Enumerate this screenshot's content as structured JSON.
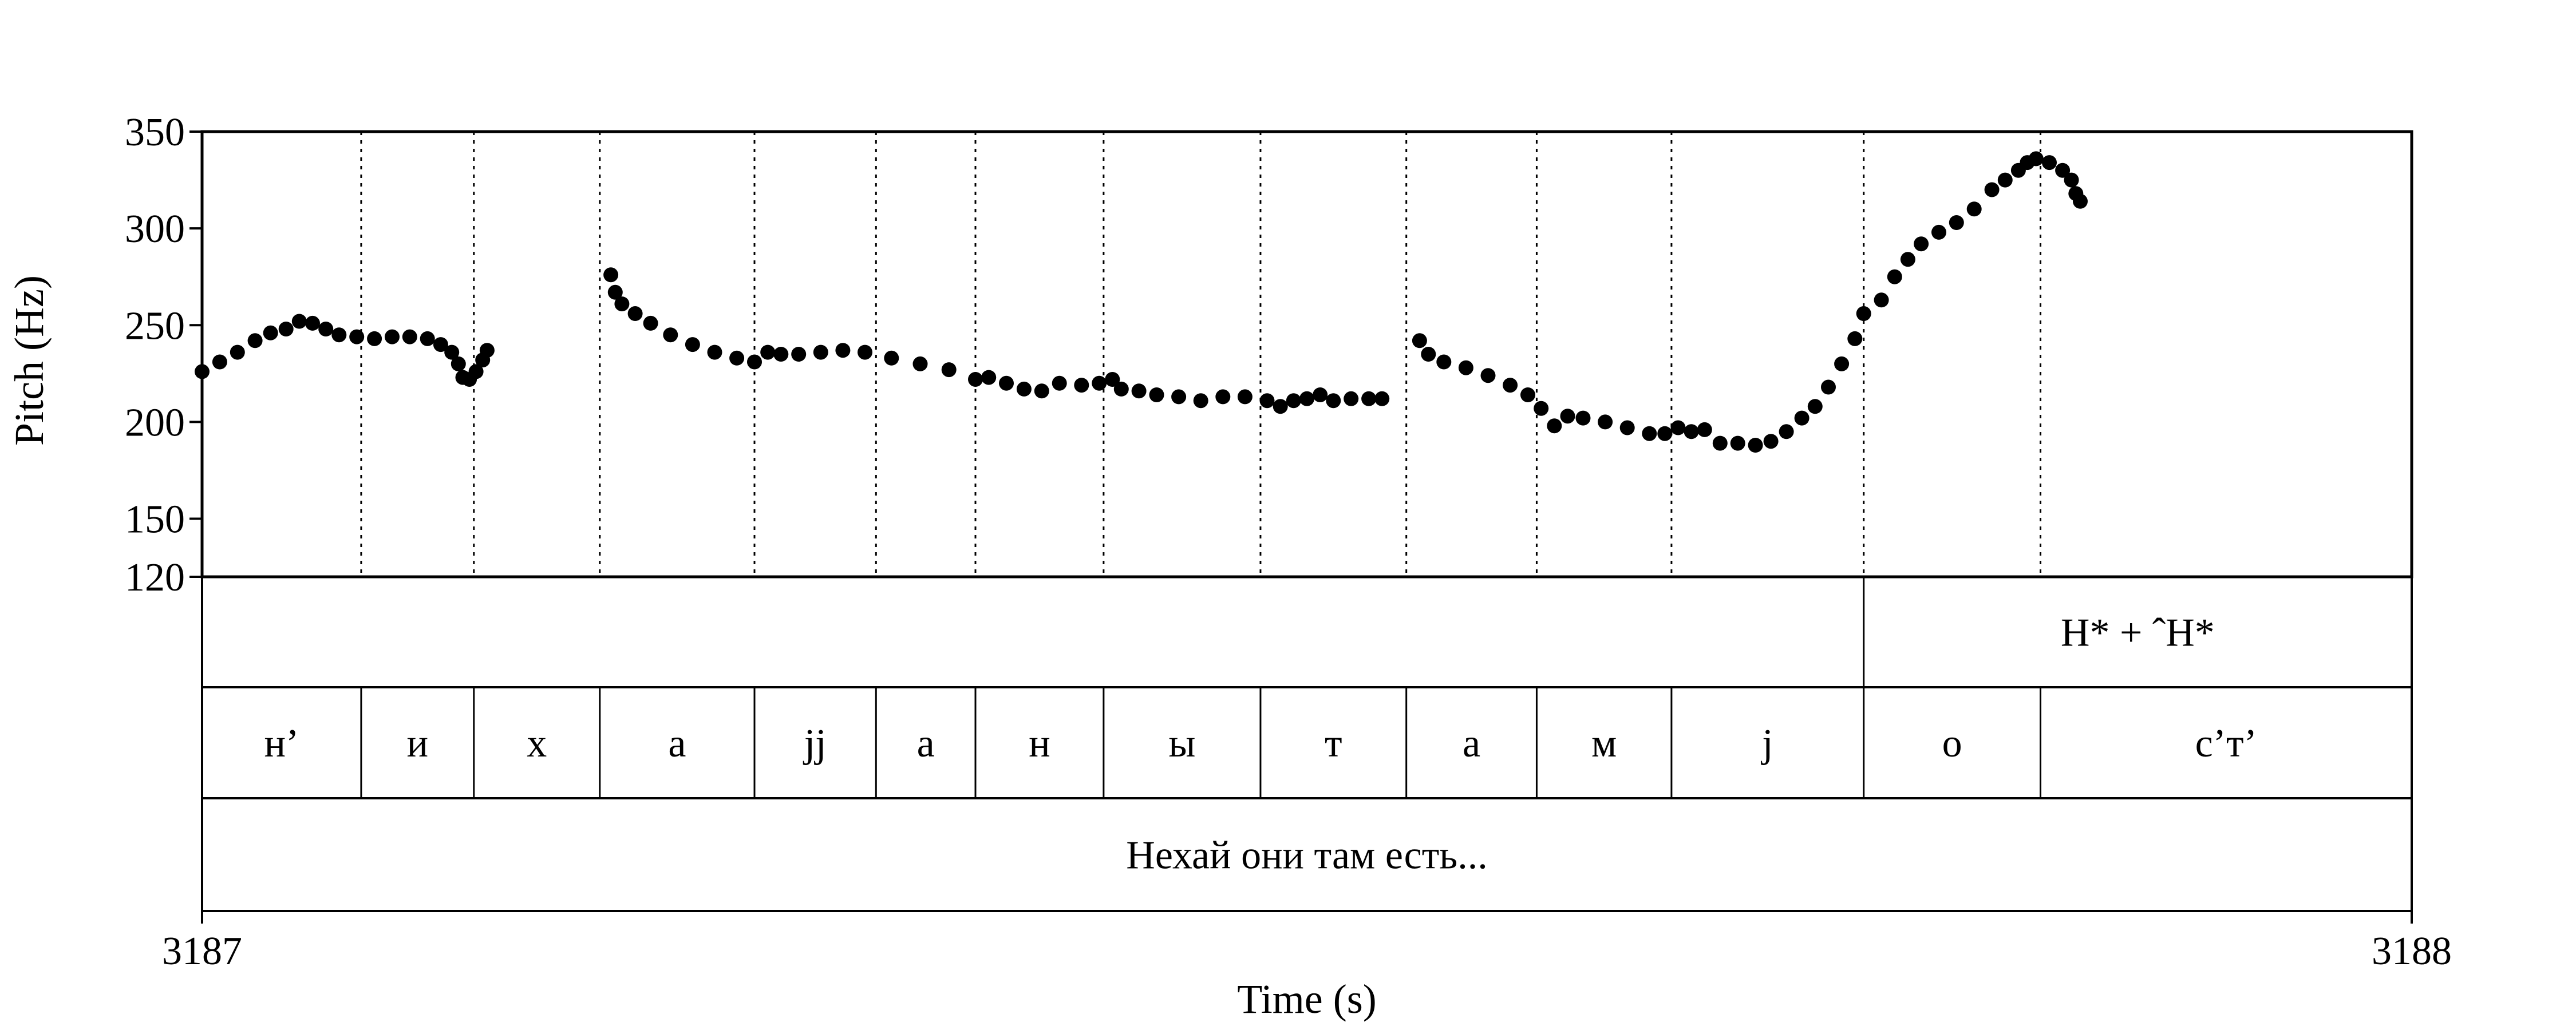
{
  "chart_data": {
    "type": "scatter",
    "xlabel": "Time (s)",
    "ylabel": "Pitch (Hz)",
    "xlim": [
      3187,
      3188
    ],
    "ylim": [
      120,
      350
    ],
    "x_ticks": [
      {
        "value": 3187,
        "label": "3187"
      },
      {
        "value": 3188,
        "label": "3188"
      }
    ],
    "y_ticks": [
      {
        "value": 350,
        "label": "350"
      },
      {
        "value": 300,
        "label": "300"
      },
      {
        "value": 250,
        "label": "250"
      },
      {
        "value": 200,
        "label": "200"
      },
      {
        "value": 150,
        "label": "150"
      },
      {
        "value": 120,
        "label": "120"
      }
    ],
    "segment_boundaries": [
      3187.072,
      3187.123,
      3187.18,
      3187.25,
      3187.305,
      3187.35,
      3187.408,
      3187.479,
      3187.545,
      3187.604,
      3187.665,
      3187.752,
      3187.832
    ],
    "tiers": [
      {
        "name": "tones",
        "intervals": [
          {
            "start": 3187.0,
            "end": 3187.752,
            "text": ""
          },
          {
            "start": 3187.752,
            "end": 3188.0,
            "text": "H* + ˆH*"
          }
        ]
      },
      {
        "name": "segments",
        "intervals": [
          {
            "start": 3187.0,
            "end": 3187.072,
            "text": "н’"
          },
          {
            "start": 3187.072,
            "end": 3187.123,
            "text": "и"
          },
          {
            "start": 3187.123,
            "end": 3187.18,
            "text": "х"
          },
          {
            "start": 3187.18,
            "end": 3187.25,
            "text": "а"
          },
          {
            "start": 3187.25,
            "end": 3187.305,
            "text": "jj"
          },
          {
            "start": 3187.305,
            "end": 3187.35,
            "text": "а"
          },
          {
            "start": 3187.35,
            "end": 3187.408,
            "text": "н"
          },
          {
            "start": 3187.408,
            "end": 3187.479,
            "text": "ы"
          },
          {
            "start": 3187.479,
            "end": 3187.545,
            "text": "т"
          },
          {
            "start": 3187.545,
            "end": 3187.604,
            "text": "а"
          },
          {
            "start": 3187.604,
            "end": 3187.665,
            "text": "м"
          },
          {
            "start": 3187.665,
            "end": 3187.752,
            "text": "j"
          },
          {
            "start": 3187.752,
            "end": 3187.832,
            "text": "о"
          },
          {
            "start": 3187.832,
            "end": 3188.0,
            "text": "с’т’"
          }
        ]
      },
      {
        "name": "sentence",
        "intervals": [
          {
            "start": 3187.0,
            "end": 3188.0,
            "text": "Нехай они там есть..."
          }
        ]
      }
    ],
    "series": [
      {
        "points": [
          [
            3187.0,
            226
          ],
          [
            3187.008,
            231
          ],
          [
            3187.016,
            236
          ],
          [
            3187.024,
            242
          ],
          [
            3187.031,
            246
          ],
          [
            3187.038,
            248
          ],
          [
            3187.044,
            252
          ],
          [
            3187.05,
            251
          ],
          [
            3187.056,
            248
          ],
          [
            3187.062,
            245
          ],
          [
            3187.07,
            244
          ],
          [
            3187.078,
            243
          ],
          [
            3187.086,
            244
          ],
          [
            3187.094,
            244
          ],
          [
            3187.102,
            243
          ],
          [
            3187.108,
            240
          ],
          [
            3187.113,
            236
          ],
          [
            3187.116,
            230
          ],
          [
            3187.118,
            223
          ],
          [
            3187.121,
            222
          ],
          [
            3187.124,
            226
          ],
          [
            3187.127,
            232
          ],
          [
            3187.129,
            237
          ],
          [
            3187.185,
            276
          ],
          [
            3187.187,
            267
          ],
          [
            3187.19,
            261
          ],
          [
            3187.196,
            256
          ],
          [
            3187.203,
            251
          ],
          [
            3187.212,
            245
          ],
          [
            3187.222,
            240
          ],
          [
            3187.232,
            236
          ],
          [
            3187.242,
            233
          ],
          [
            3187.25,
            231
          ],
          [
            3187.256,
            236
          ],
          [
            3187.262,
            235
          ],
          [
            3187.27,
            235
          ],
          [
            3187.28,
            236
          ],
          [
            3187.29,
            237
          ],
          [
            3187.3,
            236
          ],
          [
            3187.312,
            233
          ],
          [
            3187.325,
            230
          ],
          [
            3187.338,
            227
          ],
          [
            3187.35,
            222
          ],
          [
            3187.356,
            223
          ],
          [
            3187.364,
            220
          ],
          [
            3187.372,
            217
          ],
          [
            3187.38,
            216
          ],
          [
            3187.388,
            220
          ],
          [
            3187.398,
            219
          ],
          [
            3187.406,
            220
          ],
          [
            3187.412,
            222
          ],
          [
            3187.416,
            217
          ],
          [
            3187.424,
            216
          ],
          [
            3187.432,
            214
          ],
          [
            3187.442,
            213
          ],
          [
            3187.452,
            211
          ],
          [
            3187.462,
            213
          ],
          [
            3187.472,
            213
          ],
          [
            3187.482,
            211
          ],
          [
            3187.488,
            208
          ],
          [
            3187.494,
            211
          ],
          [
            3187.5,
            212
          ],
          [
            3187.506,
            214
          ],
          [
            3187.512,
            211
          ],
          [
            3187.52,
            212
          ],
          [
            3187.528,
            212
          ],
          [
            3187.534,
            212
          ],
          [
            3187.551,
            242
          ],
          [
            3187.555,
            235
          ],
          [
            3187.562,
            231
          ],
          [
            3187.572,
            228
          ],
          [
            3187.582,
            224
          ],
          [
            3187.592,
            219
          ],
          [
            3187.6,
            214
          ],
          [
            3187.606,
            207
          ],
          [
            3187.612,
            198
          ],
          [
            3187.618,
            203
          ],
          [
            3187.625,
            202
          ],
          [
            3187.635,
            200
          ],
          [
            3187.645,
            197
          ],
          [
            3187.655,
            194
          ],
          [
            3187.662,
            194
          ],
          [
            3187.668,
            197
          ],
          [
            3187.674,
            195
          ],
          [
            3187.68,
            196
          ],
          [
            3187.687,
            189
          ],
          [
            3187.695,
            189
          ],
          [
            3187.703,
            188
          ],
          [
            3187.71,
            190
          ],
          [
            3187.717,
            195
          ],
          [
            3187.724,
            202
          ],
          [
            3187.73,
            208
          ],
          [
            3187.736,
            218
          ],
          [
            3187.742,
            230
          ],
          [
            3187.748,
            243
          ],
          [
            3187.752,
            256
          ],
          [
            3187.76,
            263
          ],
          [
            3187.766,
            275
          ],
          [
            3187.772,
            284
          ],
          [
            3187.778,
            292
          ],
          [
            3187.786,
            298
          ],
          [
            3187.794,
            303
          ],
          [
            3187.802,
            310
          ],
          [
            3187.81,
            320
          ],
          [
            3187.816,
            325
          ],
          [
            3187.822,
            330
          ],
          [
            3187.826,
            334
          ],
          [
            3187.83,
            336
          ],
          [
            3187.836,
            334
          ],
          [
            3187.842,
            330
          ],
          [
            3187.846,
            325
          ],
          [
            3187.848,
            318
          ],
          [
            3187.85,
            314
          ]
        ]
      }
    ]
  }
}
